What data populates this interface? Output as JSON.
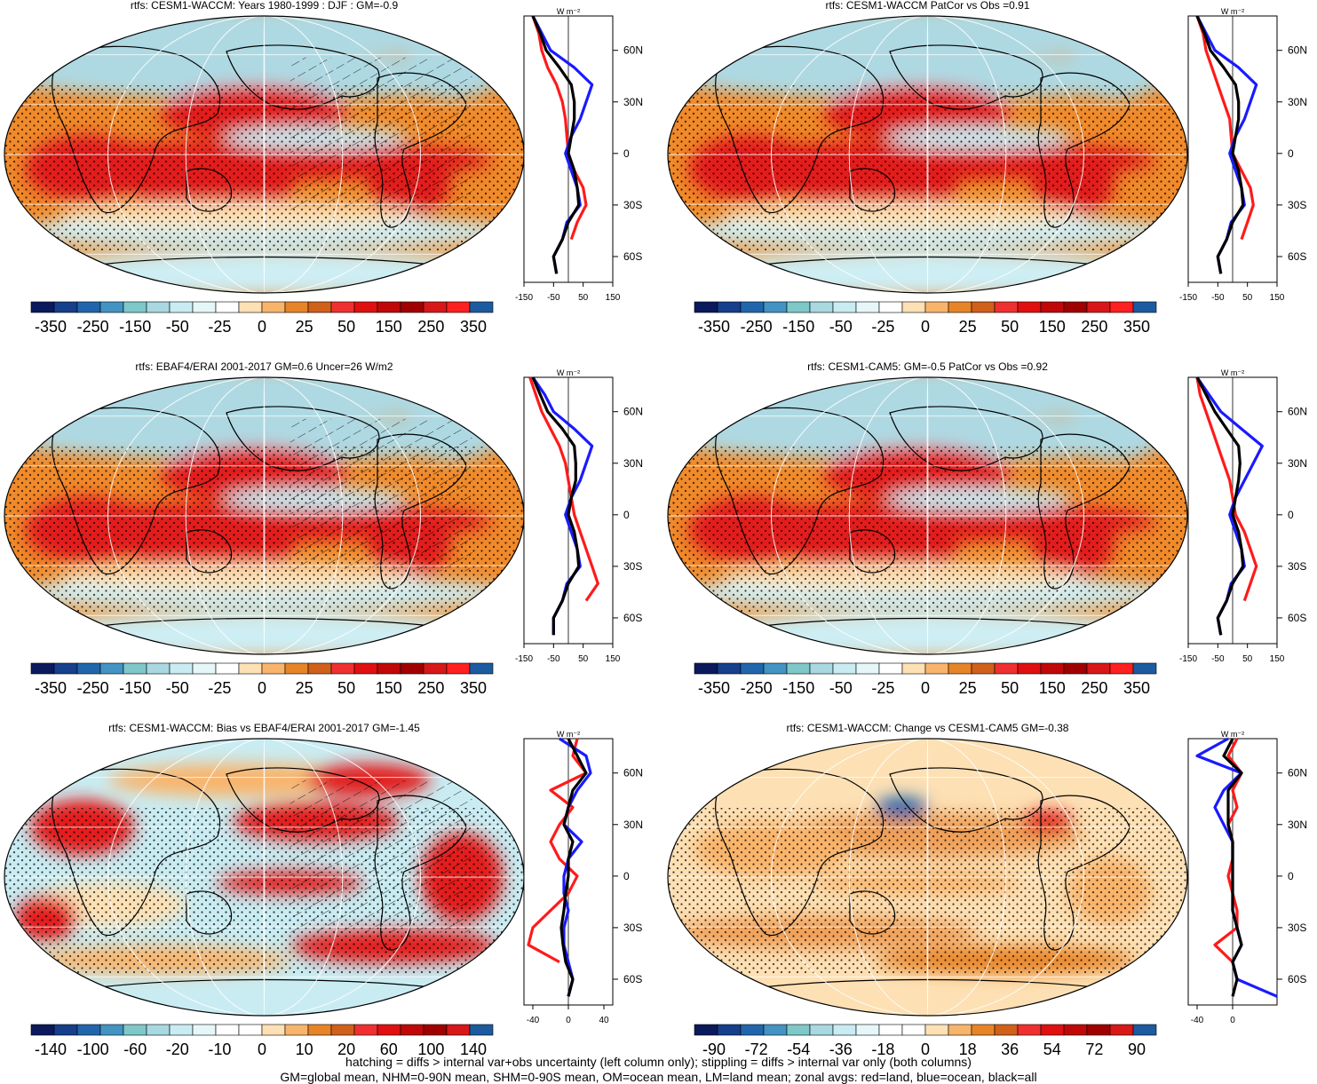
{
  "panels": [
    {
      "id": "a",
      "title": "rtfs: CESM1-WACCM: Years 1980-1999 : DJF : GM=-0.9",
      "cb": "wide",
      "xticks": [
        "-150",
        "-50",
        "50",
        "150"
      ],
      "xrange": [
        -150,
        150
      ],
      "kind": "field"
    },
    {
      "id": "b",
      "title": "rtfs: CESM1-WACCM PatCor vs Obs =0.91",
      "cb": "wide",
      "xticks": [
        "-150",
        "-50",
        "50",
        "150"
      ],
      "xrange": [
        -150,
        150
      ],
      "kind": "field"
    },
    {
      "id": "c",
      "title": "rtfs: EBAF4/ERAI 2001-2017 GM=0.6 Uncer=26 W/m2",
      "cb": "wide",
      "xticks": [
        "-150",
        "-50",
        "50",
        "150"
      ],
      "xrange": [
        -150,
        150
      ],
      "kind": "field"
    },
    {
      "id": "d",
      "title": "rtfs: CESM1-CAM5: GM=-0.5 PatCor vs Obs =0.92",
      "cb": "wide",
      "xticks": [
        "-150",
        "-50",
        "50",
        "150"
      ],
      "xrange": [
        -150,
        150
      ],
      "kind": "field"
    },
    {
      "id": "e",
      "title": "rtfs: CESM1-WACCM: Bias vs EBAF4/ERAI 2001-2017 GM=-1.45",
      "cb": "bias",
      "xticks": [
        "-40",
        "0",
        "40"
      ],
      "xrange": [
        -50,
        50
      ],
      "kind": "bias"
    },
    {
      "id": "f",
      "title": "rtfs: CESM1-WACCM: Change vs CESM1-CAM5 GM=-0.38",
      "cb": "change",
      "xticks": [
        "-40",
        "0"
      ],
      "xrange": [
        -50,
        50
      ],
      "kind": "change"
    }
  ],
  "colorbars": {
    "wide": {
      "labels": [
        "-350",
        "-250",
        "-150",
        "-50",
        "-25",
        "0",
        "25",
        "50",
        "150",
        "250",
        "350"
      ]
    },
    "bias": {
      "labels": [
        "-140",
        "-100",
        "-60",
        "-20",
        "-10",
        "0",
        "10",
        "20",
        "60",
        "100",
        "140"
      ]
    },
    "change": {
      "labels": [
        "-90",
        "-72",
        "-54",
        "-36",
        "-18",
        "0",
        "18",
        "36",
        "54",
        "72",
        "90"
      ]
    }
  },
  "zonal_axis": {
    "units": "W m⁻²",
    "yticks": [
      "60N",
      "30N",
      "0",
      "30S",
      "60S"
    ]
  },
  "colors": {
    "land": "#ff1a1a",
    "ocean": "#1a1aff",
    "all": "#000000"
  },
  "chart_data": {
    "type": "heatmap",
    "description_series": "zonal averages: red=land, blue=ocean, black=all",
    "latitudes": [
      80,
      70,
      60,
      50,
      40,
      30,
      20,
      10,
      0,
      -10,
      -20,
      -30,
      -40,
      -50,
      -60,
      -70
    ],
    "panels": [
      {
        "id": "a",
        "land": [
          -120,
          -100,
          -90,
          -70,
          -40,
          -20,
          -10,
          -5,
          0,
          20,
          50,
          60,
          30,
          10,
          null,
          -20
        ],
        "ocean": [
          -120,
          -90,
          -60,
          20,
          80,
          60,
          40,
          10,
          -10,
          10,
          30,
          40,
          -5,
          -20,
          -50,
          -40
        ],
        "all": [
          -120,
          -95,
          -75,
          -30,
          10,
          20,
          20,
          10,
          0,
          20,
          30,
          35,
          0,
          -20,
          -50,
          -40
        ]
      },
      {
        "id": "b",
        "land": [
          -120,
          -100,
          -90,
          -70,
          -50,
          -30,
          -10,
          -5,
          0,
          30,
          60,
          70,
          50,
          30,
          null,
          -20
        ],
        "ocean": [
          -120,
          -90,
          -60,
          20,
          80,
          60,
          40,
          10,
          -10,
          10,
          30,
          40,
          -5,
          -20,
          -50,
          -40
        ],
        "all": [
          -120,
          -95,
          -75,
          -30,
          10,
          20,
          20,
          10,
          0,
          20,
          30,
          35,
          0,
          -20,
          -50,
          -40
        ]
      },
      {
        "id": "c",
        "land": [
          -130,
          -110,
          -90,
          -60,
          -30,
          -10,
          0,
          10,
          20,
          40,
          60,
          80,
          100,
          60,
          null,
          -30
        ],
        "ocean": [
          -120,
          -80,
          -50,
          20,
          80,
          60,
          40,
          10,
          -10,
          10,
          30,
          40,
          -5,
          -20,
          -50,
          -50
        ],
        "all": [
          -120,
          -95,
          -70,
          -20,
          20,
          25,
          25,
          10,
          0,
          20,
          30,
          35,
          0,
          -20,
          -50,
          -50
        ]
      },
      {
        "id": "d",
        "land": [
          -120,
          -110,
          -90,
          -70,
          -50,
          -30,
          -10,
          0,
          10,
          40,
          60,
          80,
          60,
          40,
          null,
          -20
        ],
        "ocean": [
          -120,
          -80,
          -40,
          30,
          100,
          70,
          40,
          10,
          -10,
          10,
          30,
          40,
          -5,
          -20,
          -50,
          -40
        ],
        "all": [
          -120,
          -90,
          -60,
          -20,
          20,
          25,
          20,
          10,
          0,
          20,
          30,
          35,
          0,
          -20,
          -50,
          -40
        ]
      },
      {
        "id": "e",
        "land": [
          10,
          5,
          20,
          -20,
          5,
          -10,
          -20,
          -10,
          10,
          0,
          -20,
          -40,
          -45,
          -10,
          null,
          0
        ],
        "ocean": [
          -10,
          20,
          25,
          10,
          0,
          -5,
          15,
          0,
          -5,
          -5,
          0,
          -5,
          -5,
          0,
          5,
          0
        ],
        "all": [
          0,
          10,
          20,
          5,
          0,
          -5,
          5,
          0,
          0,
          -3,
          -5,
          -8,
          -6,
          -3,
          5,
          0
        ],
        "xlim": [
          -50,
          50
        ]
      },
      {
        "id": "f",
        "land": [
          5,
          -5,
          10,
          0,
          5,
          -5,
          0,
          0,
          -5,
          0,
          5,
          5,
          -20,
          0,
          null,
          0
        ],
        "ocean": [
          -5,
          -40,
          10,
          -10,
          -20,
          -10,
          0,
          0,
          0,
          0,
          0,
          5,
          10,
          0,
          5,
          50
        ],
        "all": [
          0,
          -10,
          10,
          -5,
          -5,
          -5,
          0,
          0,
          0,
          0,
          0,
          5,
          10,
          0,
          5,
          0
        ],
        "xlim": [
          -50,
          50
        ]
      }
    ]
  },
  "footer": {
    "line1": "hatching = diffs > internal var+obs uncertainty (left column only); stippling = diffs > internal var only (both columns)",
    "line2": "GM=global mean, NHM=0-90N mean, SHM=0-90S mean, OM=ocean mean, LM=land mean; zonal avgs: red=land, blue=ocean, black=all"
  }
}
